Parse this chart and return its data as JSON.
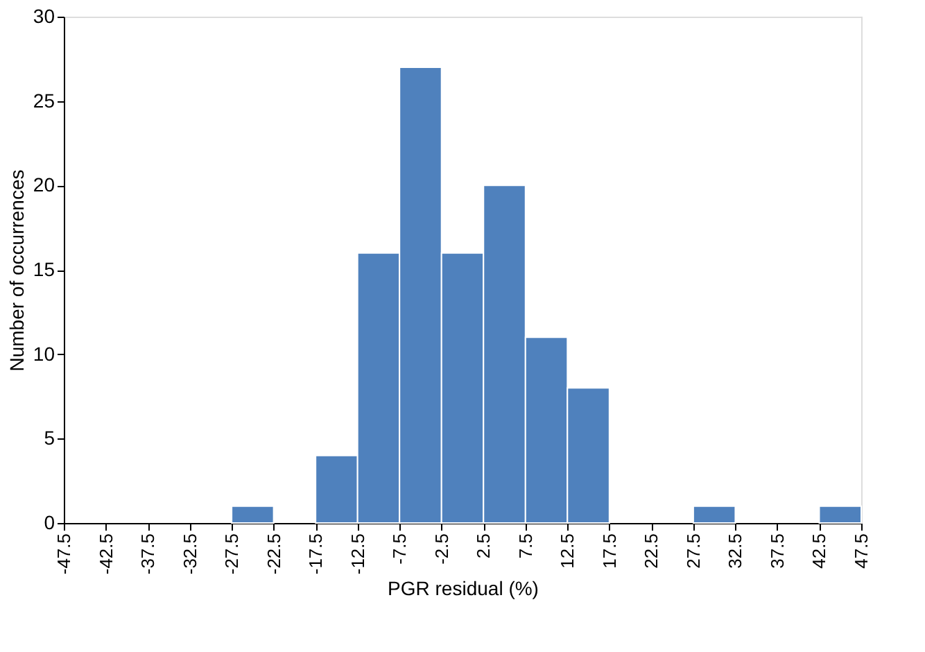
{
  "chart_data": {
    "type": "histogram",
    "xlabel": "PGR residual (%)",
    "ylabel": "Number of occurrences",
    "bins": [
      -47.5,
      -42.5,
      -37.5,
      -32.5,
      -27.5,
      -22.5,
      -17.5,
      -12.5,
      -7.5,
      -2.5,
      2.5,
      7.5,
      12.5,
      17.5,
      22.5,
      27.5,
      32.5,
      37.5,
      42.5,
      47.5
    ],
    "values": [
      0,
      0,
      0,
      0,
      1,
      0,
      4,
      16,
      27,
      16,
      20,
      11,
      8,
      0,
      0,
      1,
      0,
      0,
      1
    ],
    "color": "#4f81bd",
    "xlim": [
      -47.5,
      47.5
    ],
    "xticks": [
      -47.5,
      -42.5,
      -37.5,
      -32.5,
      -27.5,
      -22.5,
      -17.5,
      -12.5,
      -7.5,
      -2.5,
      2.5,
      7.5,
      12.5,
      17.5,
      22.5,
      27.5,
      32.5,
      37.5,
      42.5,
      47.5
    ],
    "ylim": [
      0,
      30
    ],
    "yticks": [
      0,
      5,
      10,
      15,
      20,
      25,
      30
    ],
    "grid": false
  }
}
